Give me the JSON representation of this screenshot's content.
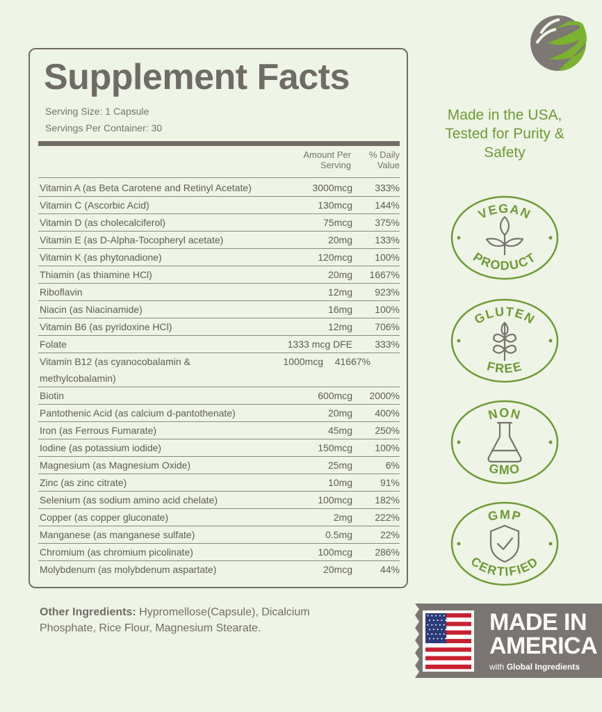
{
  "facts": {
    "title": "Supplement Facts",
    "serving_size": "Serving Size: 1 Capsule",
    "servings_per_container": "Servings Per Container: 30",
    "header": {
      "amount": "Amount Per Serving",
      "daily_value": "% Daily Value"
    },
    "rows": [
      [
        "Vitamin A (as Beta Carotene and Retinyl Acetate)",
        "3000mcg",
        "333%"
      ],
      [
        "Vitamin C (Ascorbic Acid)",
        "130mcg",
        "144%"
      ],
      [
        "Vitamin D (as cholecalciferol)",
        "75mcg",
        "375%"
      ],
      [
        "Vitamin E (as D-Alpha-Tocopheryl acetate)",
        "20mg",
        "133%"
      ],
      [
        "Vitamin K (as phytonadione)",
        "120mcg",
        "100%"
      ],
      [
        "Thiamin (as thiamine HCl)",
        "20mg",
        "1667%"
      ],
      [
        "Riboflavin",
        "12mg",
        "923%"
      ],
      [
        "Niacin (as Niacinamide)",
        "16mg",
        "100%"
      ],
      [
        "Vitamin B6 (as pyridoxine HCl)",
        "12mg",
        "706%"
      ],
      [
        "Folate",
        "1333 mcg DFE",
        "333%"
      ],
      [
        "Vitamin B12 (as cyanocobalamin & methylcobalamin)",
        "1000mcg",
        "41667%"
      ],
      [
        "Biotin",
        "600mcg",
        "2000%"
      ],
      [
        "Pantothenic Acid (as calcium d-pantothenate)",
        "20mg",
        "400%"
      ],
      [
        "Iron (as Ferrous Fumarate)",
        "45mg",
        "250%"
      ],
      [
        "Iodine (as potassium iodide)",
        "150mcg",
        "100%"
      ],
      [
        "Magnesium (as Magnesium Oxide)",
        "25mg",
        "6%"
      ],
      [
        "Zinc (as zinc citrate)",
        "10mg",
        "91%"
      ],
      [
        "Selenium (as sodium amino acid chelate)",
        "100mcg",
        "182%"
      ],
      [
        "Copper (as copper gluconate)",
        "2mg",
        "222%"
      ],
      [
        "Manganese (as manganese sulfate)",
        "0.5mg",
        "22%"
      ],
      [
        "Chromium (as chromium picolinate)",
        "100mcg",
        "286%"
      ],
      [
        "Molybdenum (as molybdenum aspartate)",
        "20mcg",
        "44%"
      ]
    ]
  },
  "other_ingredients": {
    "label": "Other Ingredients:",
    "text": "Hypromellose(Capsule), Dicalcium Phosphate, Rice Flour, Magnesium Stearate."
  },
  "claim": "Made in the USA, Tested for Purity & Safety",
  "badges": [
    {
      "top": "VEGAN",
      "bottom": "PRODUCT"
    },
    {
      "top": "GLUTEN",
      "bottom": "FREE"
    },
    {
      "top": "NON",
      "bottom": "GMO"
    },
    {
      "top": "GMP",
      "bottom": "CERTIFIED"
    }
  ],
  "made_in": {
    "title": "MADE IN AMERICA",
    "with": "with",
    "global": "Global Ingredients"
  }
}
